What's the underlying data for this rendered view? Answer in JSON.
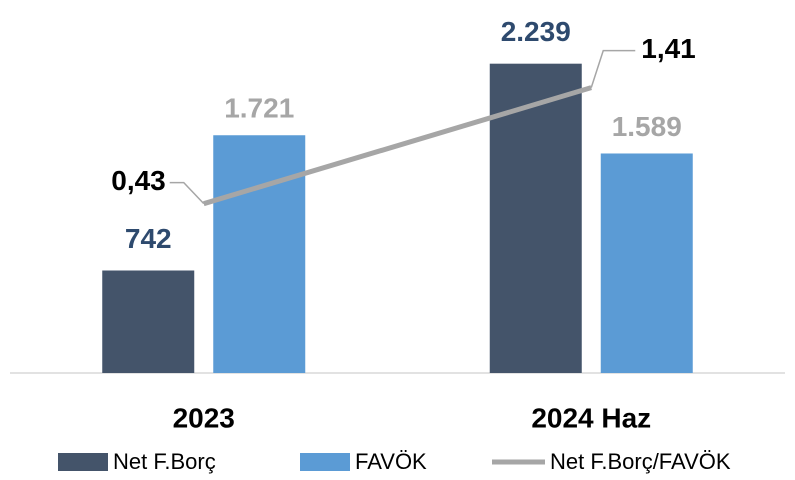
{
  "chart_data": {
    "type": "bar-line",
    "categories": [
      "2023",
      "2024 Haz"
    ],
    "series": [
      {
        "name": "Net F.Borç",
        "type": "bar",
        "color": "#44546a",
        "label_color": "#2e4a6e",
        "values": [
          742,
          2239
        ],
        "value_labels": [
          "742",
          "2.239"
        ]
      },
      {
        "name": "FAVÖK",
        "type": "bar",
        "color": "#5b9bd5",
        "label_color": "#a6a6a6",
        "values": [
          1721,
          1589
        ],
        "value_labels": [
          "1.721",
          "1.589"
        ]
      },
      {
        "name": "Net F.Borç/FAVÖK",
        "type": "line",
        "axis": "y2",
        "color": "#a6a6a6",
        "label_color": "#000000",
        "values": [
          0.43,
          1.41
        ],
        "value_labels": [
          "0,43",
          "1,41"
        ]
      }
    ],
    "ylim": [
      0,
      2700
    ],
    "y2lim": [
      -1,
      2.15
    ],
    "legend": "bottom"
  }
}
